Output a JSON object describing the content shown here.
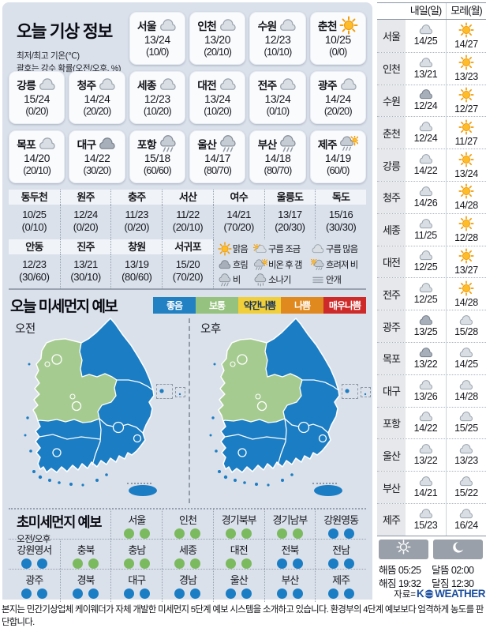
{
  "today": {
    "title": "오늘 기상 정보",
    "subtitle1": "최저/최고 기온(℃)",
    "subtitle2": "괄호는 강수 확률(오전/오후, %)",
    "cards": [
      {
        "city": "서울",
        "icon": "cloud",
        "temp": "13/24",
        "prob": "(10/0)"
      },
      {
        "city": "인천",
        "icon": "cloud",
        "temp": "13/20",
        "prob": "(20/10)"
      },
      {
        "city": "수원",
        "icon": "cloud",
        "temp": "12/23",
        "prob": "(10/10)"
      },
      {
        "city": "춘천",
        "icon": "sun",
        "temp": "10/25",
        "prob": "(0/0)"
      },
      {
        "city": "강릉",
        "icon": "cloud",
        "temp": "15/24",
        "prob": "(0/20)"
      },
      {
        "city": "청주",
        "icon": "cloud",
        "temp": "14/24",
        "prob": "(20/20)"
      },
      {
        "city": "세종",
        "icon": "cloud",
        "temp": "12/23",
        "prob": "(10/20)"
      },
      {
        "city": "대전",
        "icon": "cloud",
        "temp": "13/24",
        "prob": "(10/20)"
      },
      {
        "city": "전주",
        "icon": "cloud",
        "temp": "13/24",
        "prob": "(0/10)"
      },
      {
        "city": "광주",
        "icon": "cloud",
        "temp": "14/24",
        "prob": "(20/20)"
      },
      {
        "city": "목포",
        "icon": "cloud",
        "temp": "14/20",
        "prob": "(20/10)"
      },
      {
        "city": "대구",
        "icon": "darkcloud",
        "temp": "14/22",
        "prob": "(30/20)"
      },
      {
        "city": "포항",
        "icon": "rain",
        "temp": "15/18",
        "prob": "(60/60)"
      },
      {
        "city": "울산",
        "icon": "rain",
        "temp": "14/17",
        "prob": "(80/70)"
      },
      {
        "city": "부산",
        "icon": "rain",
        "temp": "14/18",
        "prob": "(80/70)"
      },
      {
        "city": "제주",
        "icon": "rainsun",
        "temp": "14/19",
        "prob": "(60/0)"
      }
    ]
  },
  "extra_table": {
    "row1": [
      {
        "city": "동두천",
        "temp": "10/25",
        "prob": "(0/10)"
      },
      {
        "city": "원주",
        "temp": "12/24",
        "prob": "(0/20)"
      },
      {
        "city": "충주",
        "temp": "11/23",
        "prob": "(0/20)"
      },
      {
        "city": "서산",
        "temp": "11/22",
        "prob": "(20/10)"
      },
      {
        "city": "여수",
        "temp": "14/21",
        "prob": "(70/20)"
      },
      {
        "city": "울릉도",
        "temp": "13/17",
        "prob": "(20/30)"
      },
      {
        "city": "독도",
        "temp": "15/16",
        "prob": "(30/30)"
      }
    ],
    "row2": [
      {
        "city": "안동",
        "temp": "12/23",
        "prob": "(30/60)"
      },
      {
        "city": "진주",
        "temp": "13/21",
        "prob": "(30/10)"
      },
      {
        "city": "창원",
        "temp": "13/19",
        "prob": "(80/60)"
      },
      {
        "city": "서귀포",
        "temp": "15/20",
        "prob": "(70/20)"
      }
    ],
    "legend": [
      {
        "icon": "sun",
        "label": "맑음"
      },
      {
        "icon": "suncloud",
        "label": "구름 조금"
      },
      {
        "icon": "cloud",
        "label": "구름 많음"
      },
      {
        "icon": "darkcloud",
        "label": "흐림"
      },
      {
        "icon": "rainsun",
        "label": "비온 후 갬"
      },
      {
        "icon": "sunrain",
        "label": "흐려져 비"
      },
      {
        "icon": "rain",
        "label": "비"
      },
      {
        "icon": "shower",
        "label": "소나기"
      },
      {
        "icon": "fog",
        "label": "안개"
      }
    ]
  },
  "dust": {
    "title": "오늘 미세먼지 예보",
    "levels": [
      {
        "label": "좋음",
        "color": "#2181c2",
        "text": "#ffffff"
      },
      {
        "label": "보통",
        "color": "#95c27e",
        "text": "#ffffff"
      },
      {
        "label": "약간나쁨",
        "color": "#f1cf3a",
        "text": "#15325e"
      },
      {
        "label": "나쁨",
        "color": "#e0891f",
        "text": "#ffffff"
      },
      {
        "label": "매우나쁨",
        "color": "#cd2a29",
        "text": "#ffffff"
      }
    ],
    "map_colors": {
      "good": "#1b7dc3",
      "moderate": "#a6cb90"
    },
    "maps": [
      {
        "label": "오전"
      },
      {
        "label": "오후"
      }
    ]
  },
  "ultrafine": {
    "title": "초미세먼지 예보",
    "sublabel": "오전/오후",
    "dot_colors": {
      "b": "#1b7ec5",
      "g": "#7cba5f"
    },
    "rows": [
      [
        {
          "name": "서울",
          "am": "g",
          "pm": "g"
        },
        {
          "name": "인천",
          "am": "g",
          "pm": "g"
        },
        {
          "name": "경기북부",
          "am": "g",
          "pm": "g"
        },
        {
          "name": "경기남부",
          "am": "g",
          "pm": "g"
        },
        {
          "name": "강원영동",
          "am": "b",
          "pm": "b"
        }
      ],
      [
        {
          "name": "강원영서",
          "am": "b",
          "pm": "b"
        },
        {
          "name": "충북",
          "am": "g",
          "pm": "g"
        },
        {
          "name": "충남",
          "am": "g",
          "pm": "g"
        },
        {
          "name": "세종",
          "am": "g",
          "pm": "g"
        },
        {
          "name": "대전",
          "am": "g",
          "pm": "g"
        },
        {
          "name": "전북",
          "am": "b",
          "pm": "b"
        },
        {
          "name": "전남",
          "am": "b",
          "pm": "b"
        }
      ],
      [
        {
          "name": "광주",
          "am": "b",
          "pm": "b"
        },
        {
          "name": "경북",
          "am": "b",
          "pm": "b"
        },
        {
          "name": "대구",
          "am": "b",
          "pm": "b"
        },
        {
          "name": "경남",
          "am": "b",
          "pm": "b"
        },
        {
          "name": "울산",
          "am": "b",
          "pm": "b"
        },
        {
          "name": "부산",
          "am": "b",
          "pm": "b"
        },
        {
          "name": "제주",
          "am": "b",
          "pm": "b"
        }
      ]
    ]
  },
  "forecast": {
    "headers": [
      "내일(일)",
      "모레(월)"
    ],
    "rows": [
      {
        "city": "서울",
        "d1": {
          "icon": "cloud",
          "temp": "14/25"
        },
        "d2": {
          "icon": "sun",
          "temp": "14/27"
        }
      },
      {
        "city": "인천",
        "d1": {
          "icon": "cloud",
          "temp": "13/21"
        },
        "d2": {
          "icon": "sun",
          "temp": "13/23"
        }
      },
      {
        "city": "수원",
        "d1": {
          "icon": "darkcloud",
          "temp": "12/24"
        },
        "d2": {
          "icon": "sun",
          "temp": "12/27"
        }
      },
      {
        "city": "춘천",
        "d1": {
          "icon": "cloud",
          "temp": "12/24"
        },
        "d2": {
          "icon": "sun",
          "temp": "11/27"
        }
      },
      {
        "city": "강릉",
        "d1": {
          "icon": "cloud",
          "temp": "14/22"
        },
        "d2": {
          "icon": "sun",
          "temp": "13/24"
        }
      },
      {
        "city": "청주",
        "d1": {
          "icon": "cloud",
          "temp": "14/26"
        },
        "d2": {
          "icon": "sun",
          "temp": "14/28"
        }
      },
      {
        "city": "세종",
        "d1": {
          "icon": "cloud",
          "temp": "11/25"
        },
        "d2": {
          "icon": "sun",
          "temp": "12/28"
        }
      },
      {
        "city": "대전",
        "d1": {
          "icon": "cloud",
          "temp": "12/25"
        },
        "d2": {
          "icon": "sun",
          "temp": "13/27"
        }
      },
      {
        "city": "전주",
        "d1": {
          "icon": "cloud",
          "temp": "12/25"
        },
        "d2": {
          "icon": "sun",
          "temp": "14/28"
        }
      },
      {
        "city": "광주",
        "d1": {
          "icon": "darkcloud",
          "temp": "13/25"
        },
        "d2": {
          "icon": "cloud",
          "temp": "15/28"
        }
      },
      {
        "city": "목포",
        "d1": {
          "icon": "darkcloud",
          "temp": "13/22"
        },
        "d2": {
          "icon": "cloud",
          "temp": "14/25"
        }
      },
      {
        "city": "대구",
        "d1": {
          "icon": "cloud",
          "temp": "13/26"
        },
        "d2": {
          "icon": "cloud",
          "temp": "14/28"
        }
      },
      {
        "city": "포항",
        "d1": {
          "icon": "cloud",
          "temp": "14/22"
        },
        "d2": {
          "icon": "cloud",
          "temp": "15/25"
        }
      },
      {
        "city": "울산",
        "d1": {
          "icon": "cloud",
          "temp": "13/22"
        },
        "d2": {
          "icon": "cloud",
          "temp": "13/23"
        }
      },
      {
        "city": "부산",
        "d1": {
          "icon": "cloud",
          "temp": "14/21"
        },
        "d2": {
          "icon": "cloud",
          "temp": "15/22"
        }
      },
      {
        "city": "제주",
        "d1": {
          "icon": "cloud",
          "temp": "15/23"
        },
        "d2": {
          "icon": "cloud",
          "temp": "16/24"
        }
      }
    ]
  },
  "astro": {
    "lines": [
      [
        {
          "label": "해뜸",
          "time": "05:25"
        },
        {
          "label": "달뜸",
          "time": "02:00"
        }
      ],
      [
        {
          "label": "해짐",
          "time": "19:32"
        },
        {
          "label": "달짐",
          "time": "12:30"
        }
      ]
    ],
    "source_prefix": "자료=",
    "logo_k": "K",
    "logo_weather": "WEATHER"
  },
  "disclaimer": "본지는 민간기상업체 케이웨더가 자체 개발한 미세먼지 5단계 예보 시스템을 소개하고 있습니다. 환경부의 4단계 예보보다 엄격하게 농도를 판단합니다."
}
